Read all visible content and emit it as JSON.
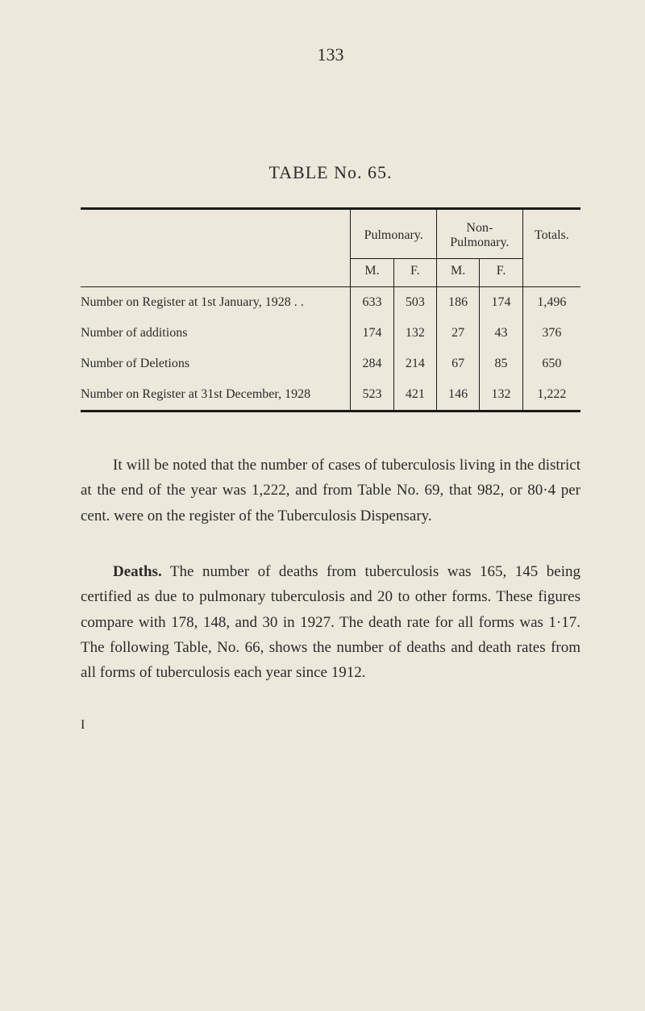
{
  "page_number": "133",
  "table_title": "TABLE No. 65.",
  "table": {
    "headers": {
      "group1": "Pulmonary.",
      "group2": "Non-\nPulmonary.",
      "totals": "Totals.",
      "m": "M.",
      "f": "F."
    },
    "rows": [
      {
        "label": "Number on Register at 1st January, 1928 . .",
        "pm": "633",
        "pf": "503",
        "nm": "186",
        "nf": "174",
        "total": "1,496"
      },
      {
        "label": "Number of additions",
        "pm": "174",
        "pf": "132",
        "nm": "27",
        "nf": "43",
        "total": "376"
      },
      {
        "label": "Number of Deletions",
        "pm": "284",
        "pf": "214",
        "nm": "67",
        "nf": "85",
        "total": "650"
      },
      {
        "label": "Number on Register at 31st December, 1928",
        "pm": "523",
        "pf": "421",
        "nm": "146",
        "nf": "132",
        "total": "1,222"
      }
    ]
  },
  "paragraphs": {
    "p1": "It will be noted that the number of cases of tuberculosis living in the district at the end of the year was 1,222, and from Table No. 69, that 982, or 80·4 per cent. were on the register of the Tuberculosis Dispensary.",
    "p2_bold": "Deaths.",
    "p2_rest": " The number of deaths from tuberculosis was 165, 145 being certified as due to pulmonary tuberculosis and 20 to other forms. These figures compare with 178, 148, and 30 in 1927. The death rate for all forms was 1·17. The following Table, No. 66, shows the number of deaths and death rates from all forms of tuberculosis each year since 1912."
  },
  "footer_letter": "I",
  "colors": {
    "background": "#ece8db",
    "text": "#2a2a2a",
    "border": "#1a1a1a"
  }
}
